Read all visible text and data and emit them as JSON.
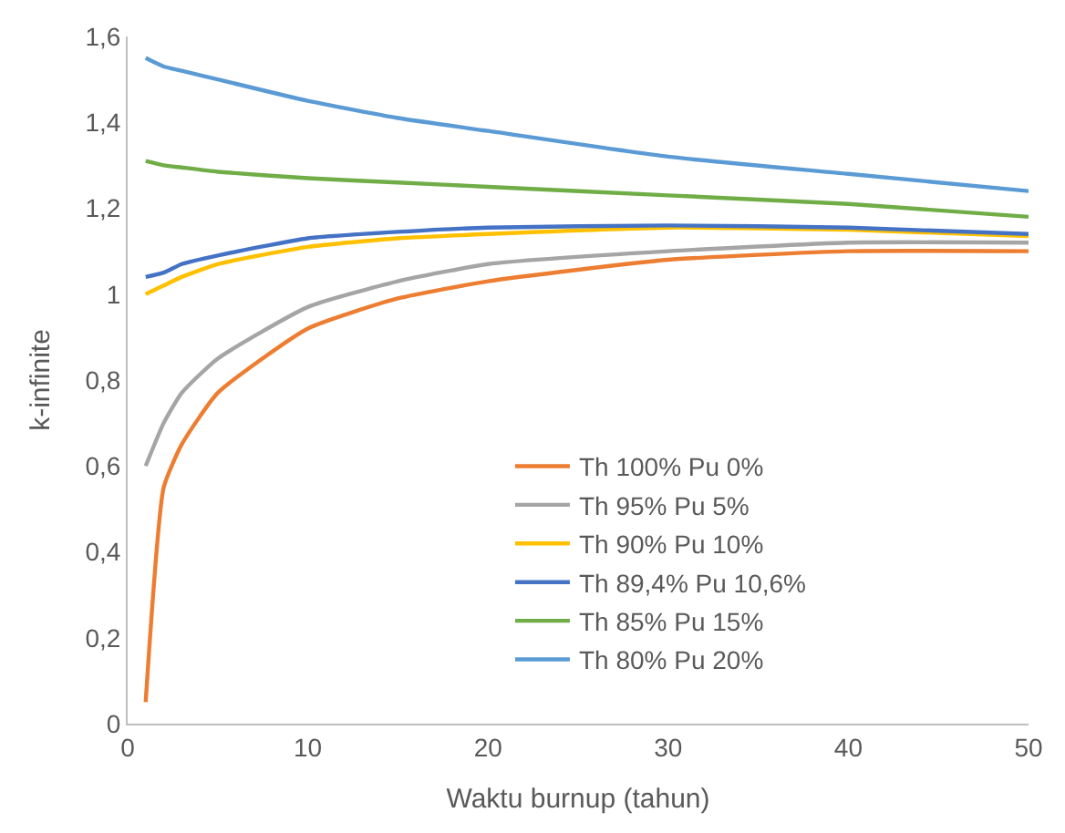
{
  "chart_data": {
    "type": "line",
    "xlabel": "Waktu burnup (tahun)",
    "ylabel": "k-infinite",
    "xlim": [
      0,
      50
    ],
    "xticks": [
      0,
      10,
      20,
      30,
      40,
      50
    ],
    "ylim": [
      0,
      1.6
    ],
    "yticks": [
      0,
      {
        "value": 0.2,
        "label": "0,2"
      },
      {
        "value": 0.4,
        "label": "0,4"
      },
      {
        "value": 0.6,
        "label": "0,6"
      },
      {
        "value": 0.8,
        "label": "0,8"
      },
      1,
      {
        "value": 1.2,
        "label": "1,2"
      },
      {
        "value": 1.4,
        "label": "1,4"
      },
      {
        "value": 1.6,
        "label": "1,6"
      }
    ],
    "grid": false,
    "legend": "bottom right",
    "marker": "none",
    "line_style": "solid",
    "x": [
      1,
      2,
      3,
      5,
      10,
      15,
      20,
      30,
      40,
      50
    ],
    "series": [
      {
        "name": "Th 100% Pu 0%",
        "color": "#ed7d31",
        "values": [
          0.05,
          0.55,
          0.65,
          0.77,
          0.92,
          0.99,
          1.03,
          1.08,
          1.1,
          1.1
        ]
      },
      {
        "name": "Th 95% Pu 5%",
        "color": "#a5a5a5",
        "values": [
          0.6,
          0.7,
          0.77,
          0.85,
          0.97,
          1.03,
          1.07,
          1.1,
          1.12,
          1.12
        ]
      },
      {
        "name": "Th 90% Pu 10%",
        "color": "#ffc000",
        "values": [
          1.0,
          1.02,
          1.04,
          1.07,
          1.11,
          1.13,
          1.14,
          1.155,
          1.15,
          1.135
        ]
      },
      {
        "name": "Th 89,4% Pu 10,6%",
        "color": "#4472c4",
        "values": [
          1.04,
          1.05,
          1.07,
          1.09,
          1.13,
          1.145,
          1.155,
          1.16,
          1.155,
          1.14
        ]
      },
      {
        "name": "Th 85% Pu 15%",
        "color": "#70ad47",
        "values": [
          1.31,
          1.3,
          1.295,
          1.285,
          1.27,
          1.26,
          1.25,
          1.23,
          1.21,
          1.18
        ]
      },
      {
        "name": "Th 80% Pu 20%",
        "color": "#5b9bd5",
        "values": [
          1.55,
          1.53,
          1.52,
          1.5,
          1.45,
          1.41,
          1.38,
          1.32,
          1.28,
          1.24
        ]
      }
    ]
  }
}
